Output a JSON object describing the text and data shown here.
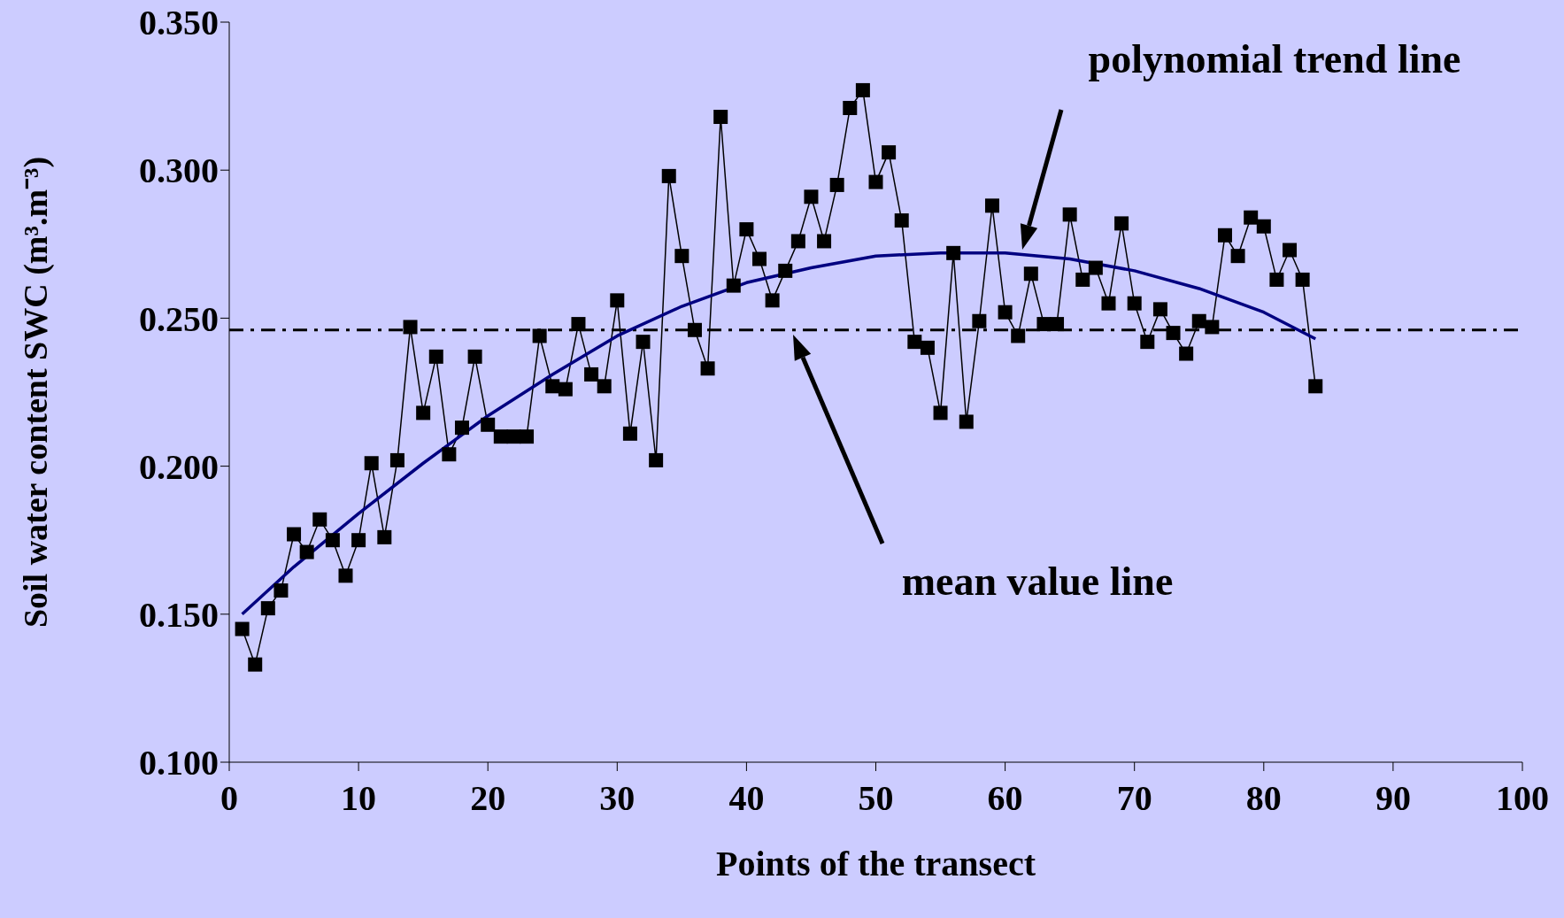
{
  "chart_data": {
    "type": "line",
    "xlabel": "Points of the transect",
    "ylabel": "Soil water content SWC (m³.m⁻³)",
    "x": [
      1,
      2,
      3,
      4,
      5,
      6,
      7,
      8,
      9,
      10,
      11,
      12,
      13,
      14,
      15,
      16,
      17,
      18,
      19,
      20,
      21,
      22,
      23,
      24,
      25,
      26,
      27,
      28,
      29,
      30,
      31,
      32,
      33,
      34,
      35,
      36,
      37,
      38,
      39,
      40,
      41,
      42,
      43,
      44,
      45,
      46,
      47,
      48,
      49,
      50,
      51,
      52,
      53,
      54,
      55,
      56,
      57,
      58,
      59,
      60,
      61,
      62,
      63,
      64,
      65,
      66,
      67,
      68,
      69,
      70,
      71,
      72,
      73,
      74,
      75,
      76,
      77,
      78,
      79,
      80,
      81,
      82,
      83,
      84
    ],
    "series": [
      {
        "color": "#000000",
        "marker": "square",
        "values": [
          0.145,
          0.133,
          0.152,
          0.158,
          0.177,
          0.171,
          0.182,
          0.175,
          0.163,
          0.175,
          0.201,
          0.176,
          0.202,
          0.247,
          0.218,
          0.237,
          0.204,
          0.213,
          0.237,
          0.214,
          0.21,
          0.21,
          0.21,
          0.244,
          0.227,
          0.226,
          0.248,
          0.231,
          0.227,
          0.256,
          0.211,
          0.242,
          0.202,
          0.298,
          0.271,
          0.246,
          0.233,
          0.318,
          0.261,
          0.28,
          0.27,
          0.256,
          0.266,
          0.276,
          0.291,
          0.276,
          0.295,
          0.321,
          0.327,
          0.296,
          0.306,
          0.283,
          0.242,
          0.24,
          0.218,
          0.272,
          0.215,
          0.249,
          0.288,
          0.252,
          0.244,
          0.265,
          0.248,
          0.248,
          0.285,
          0.263,
          0.267,
          0.255,
          0.282,
          0.255,
          0.242,
          0.253,
          0.245,
          0.238,
          0.249,
          0.247,
          0.278,
          0.271,
          0.284,
          0.281,
          0.263,
          0.273,
          0.263,
          0.227
        ]
      },
      {
        "type": "line",
        "color": "#000080",
        "marker": "none",
        "x": [
          1,
          5,
          10,
          15,
          20,
          25,
          30,
          35,
          40,
          45,
          50,
          55,
          60,
          65,
          70,
          75,
          80,
          84
        ],
        "values": [
          0.15,
          0.166,
          0.184,
          0.201,
          0.217,
          0.231,
          0.244,
          0.254,
          0.262,
          0.267,
          0.271,
          0.272,
          0.272,
          0.27,
          0.266,
          0.26,
          0.252,
          0.243
        ]
      }
    ],
    "xlim": [
      0,
      100
    ],
    "xticks": [
      0,
      10,
      20,
      30,
      40,
      50,
      60,
      70,
      80,
      90,
      100
    ],
    "ylim": [
      0.1,
      0.35
    ],
    "yticks": [
      {
        "value": 0.1,
        "label": "0.100"
      },
      {
        "value": 0.15,
        "label": "0.150"
      },
      {
        "value": 0.2,
        "label": "0.200"
      },
      {
        "value": 0.25,
        "label": "0.250"
      },
      {
        "value": 0.3,
        "label": "0.300"
      },
      {
        "value": 0.35,
        "label": "0.350"
      }
    ],
    "ref_lines": [
      {
        "axis": "y",
        "value": 0.246,
        "color": "#000000",
        "line_style": "dashdot"
      }
    ],
    "annotations": [
      "polynomial trend line",
      "mean value line"
    ]
  }
}
